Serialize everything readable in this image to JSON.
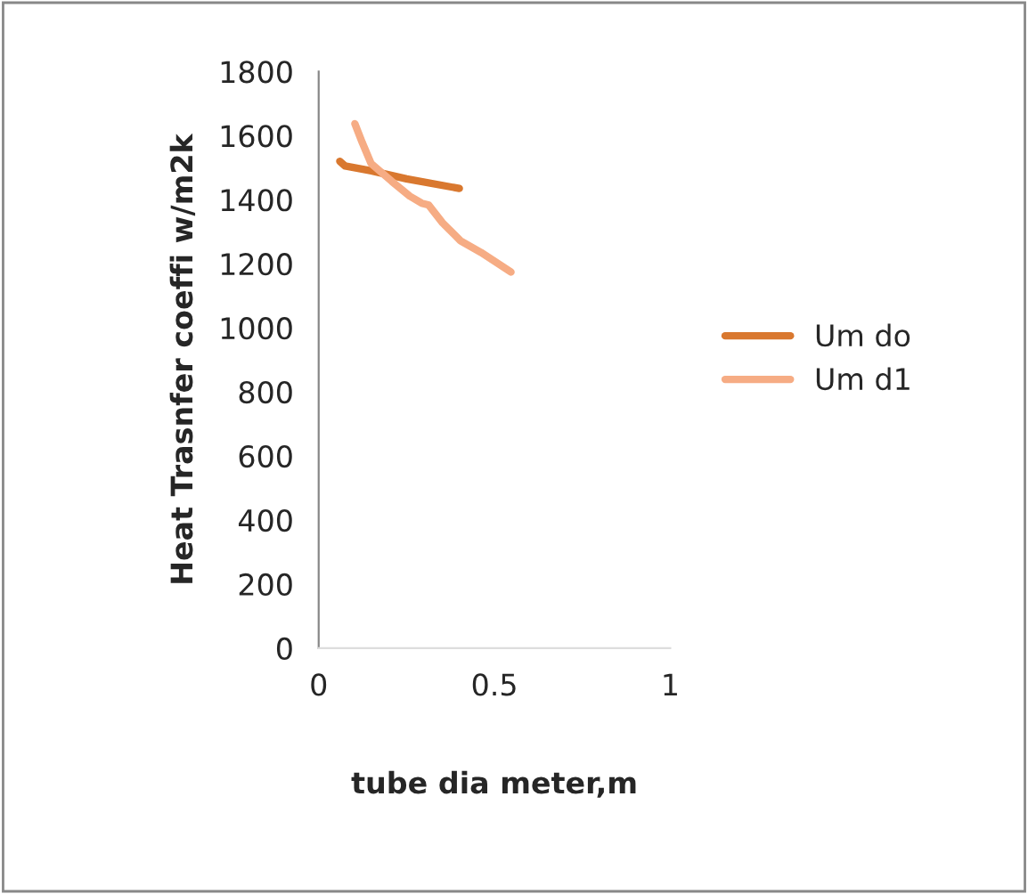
{
  "chart_data": {
    "type": "line",
    "xlabel": "tube dia meter,m",
    "ylabel": "Heat Trasnfer coeffi w/m2k",
    "xlim": [
      0,
      1
    ],
    "xticks": [
      0,
      0.5,
      1
    ],
    "ylim": [
      0,
      1800
    ],
    "yticks": [
      0,
      200,
      400,
      600,
      800,
      1000,
      1200,
      1400,
      1600,
      1800
    ],
    "grid": false,
    "legend": "right",
    "line_style": "solid",
    "marker": "none",
    "series": [
      {
        "name": "Um do",
        "color": "#d9782f",
        "x": [
          0.06,
          0.075,
          0.15,
          0.25,
          0.4
        ],
        "values": [
          1520,
          1505,
          1490,
          1465,
          1435
        ]
      },
      {
        "name": "Um d1",
        "color": "#f6ac84",
        "x": [
          0.103,
          0.124,
          0.149,
          0.208,
          0.259,
          0.293,
          0.313,
          0.352,
          0.403,
          0.462,
          0.547
        ],
        "values": [
          1637,
          1578,
          1513,
          1457,
          1411,
          1389,
          1383,
          1328,
          1272,
          1235,
          1174
        ]
      }
    ]
  }
}
